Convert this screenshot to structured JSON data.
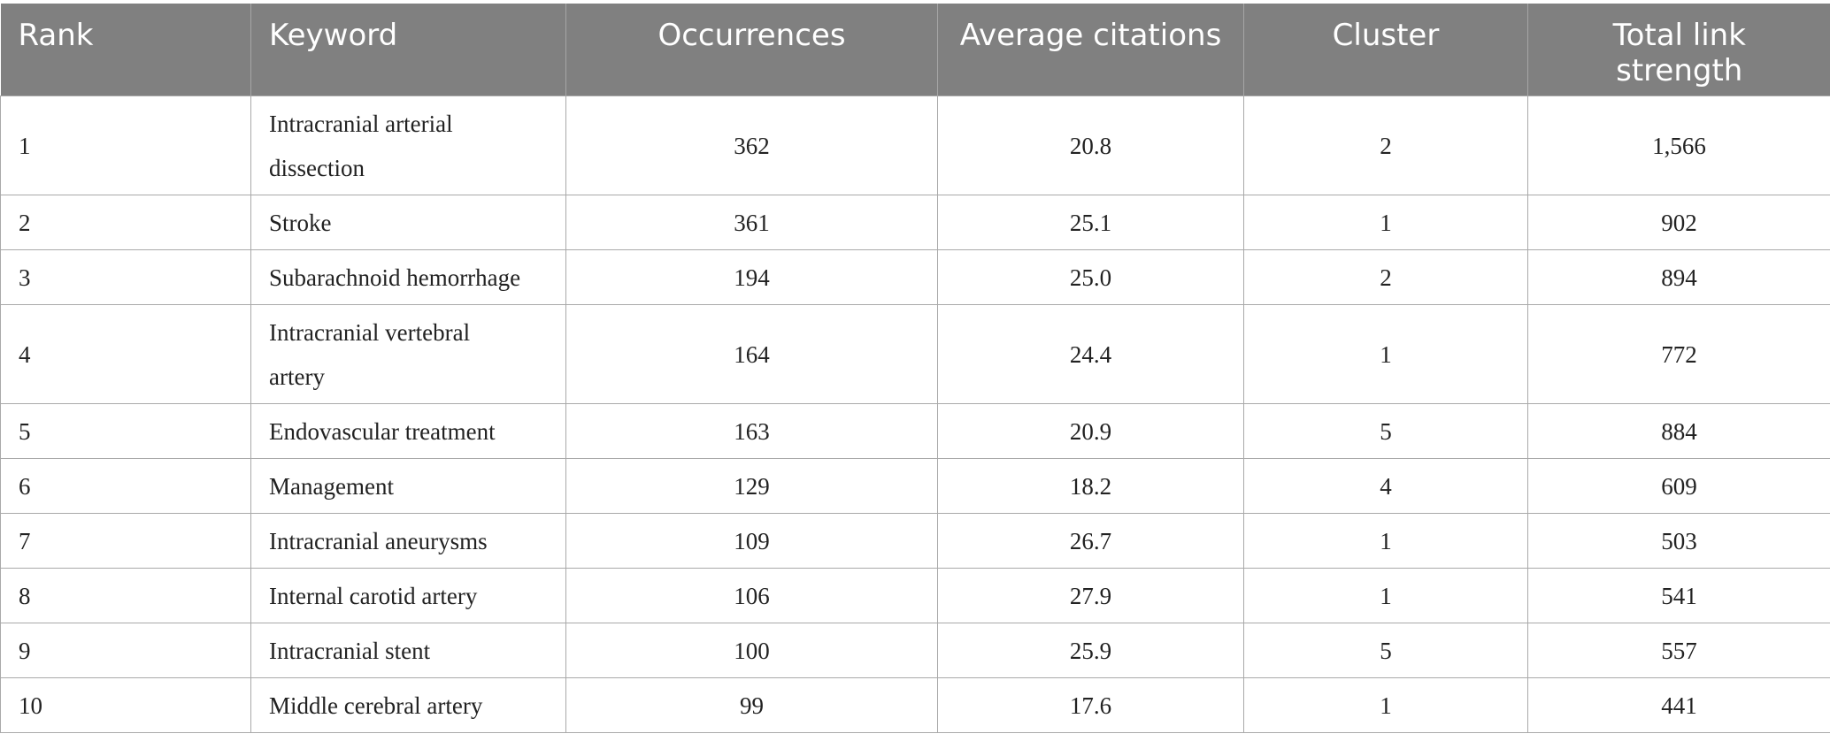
{
  "table": {
    "headers": [
      "Rank",
      "Keyword",
      "Occurrences",
      "Average citations",
      "Cluster",
      "Total link strength"
    ],
    "header_total_link_line1": "Total link",
    "header_total_link_line2": "strength",
    "rows": [
      {
        "rank": "1",
        "keyword_line1": "Intracranial arterial",
        "keyword_line2": "dissection",
        "occurrences": "362",
        "avg_citations": "20.8",
        "cluster": "2",
        "link_strength": "1,566"
      },
      {
        "rank": "2",
        "keyword_line1": "Stroke",
        "keyword_line2": "",
        "occurrences": "361",
        "avg_citations": "25.1",
        "cluster": "1",
        "link_strength": "902"
      },
      {
        "rank": "3",
        "keyword_line1": "Subarachnoid hemorrhage",
        "keyword_line2": "",
        "occurrences": "194",
        "avg_citations": "25.0",
        "cluster": "2",
        "link_strength": "894"
      },
      {
        "rank": "4",
        "keyword_line1": "Intracranial vertebral",
        "keyword_line2": "artery",
        "occurrences": "164",
        "avg_citations": "24.4",
        "cluster": "1",
        "link_strength": "772"
      },
      {
        "rank": "5",
        "keyword_line1": "Endovascular treatment",
        "keyword_line2": "",
        "occurrences": "163",
        "avg_citations": "20.9",
        "cluster": "5",
        "link_strength": "884"
      },
      {
        "rank": "6",
        "keyword_line1": "Management",
        "keyword_line2": "",
        "occurrences": "129",
        "avg_citations": "18.2",
        "cluster": "4",
        "link_strength": "609"
      },
      {
        "rank": "7",
        "keyword_line1": "Intracranial aneurysms",
        "keyword_line2": "",
        "occurrences": "109",
        "avg_citations": "26.7",
        "cluster": "1",
        "link_strength": "503"
      },
      {
        "rank": "8",
        "keyword_line1": "Internal carotid artery",
        "keyword_line2": "",
        "occurrences": "106",
        "avg_citations": "27.9",
        "cluster": "1",
        "link_strength": "541"
      },
      {
        "rank": "9",
        "keyword_line1": "Intracranial stent",
        "keyword_line2": "",
        "occurrences": "100",
        "avg_citations": "25.9",
        "cluster": "5",
        "link_strength": "557"
      },
      {
        "rank": "10",
        "keyword_line1": "Middle cerebral artery",
        "keyword_line2": "",
        "occurrences": "99",
        "avg_citations": "17.6",
        "cluster": "1",
        "link_strength": "441"
      }
    ]
  },
  "colors": {
    "header_bg": "#808080",
    "header_text": "#ffffff",
    "grid": "#a9a9a9"
  }
}
